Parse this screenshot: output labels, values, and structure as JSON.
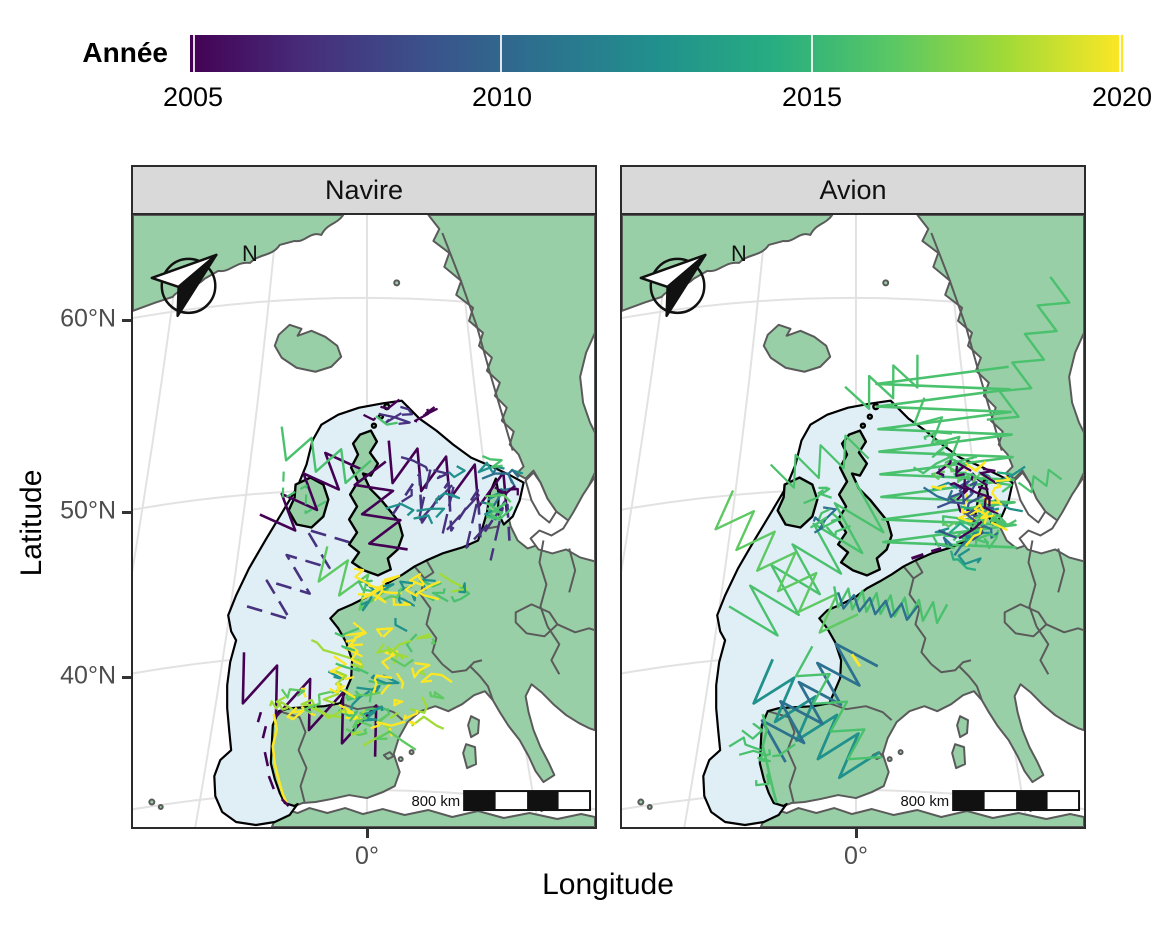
{
  "figure": {
    "legend": {
      "title": "Année",
      "tick_labels": [
        "2005",
        "2010",
        "2015",
        "2020"
      ],
      "colormap": "viridis",
      "gradient_stops": [
        "#440154",
        "#472d7b",
        "#3b518b",
        "#2c718e",
        "#21908d",
        "#27ad81",
        "#58c765",
        "#a2da37",
        "#fde725"
      ]
    },
    "facets": [
      {
        "label": "Navire"
      },
      {
        "label": "Avion"
      }
    ],
    "x_axis": {
      "label": "Longitude",
      "tick_labels": [
        "0°",
        "0°"
      ]
    },
    "y_axis": {
      "label": "Latitude",
      "tick_labels": [
        "60°N",
        "50°N",
        "40°N"
      ]
    },
    "map": {
      "north_arrow_label": "N",
      "scale_bar_label": "800 km",
      "colors": {
        "land": "#99cfa7",
        "ocean": "#ffffff",
        "survey_area": "#e0eef6",
        "coastline": "#5a5a5a",
        "survey_outline": "#000000",
        "graticule": "#e2e2e2",
        "strip_background": "#d9d9d9",
        "axis_text": "#4d4d4d"
      },
      "track_colors": {
        "2005": "#440154",
        "2007": "#46327e",
        "2009": "#3b518b",
        "2011": "#2c718e",
        "2013": "#21918c",
        "2015": "#27ad81",
        "2017": "#4ac16d",
        "2018": "#5ec962",
        "2019": "#a0da37",
        "2020": "#fde725"
      }
    }
  }
}
